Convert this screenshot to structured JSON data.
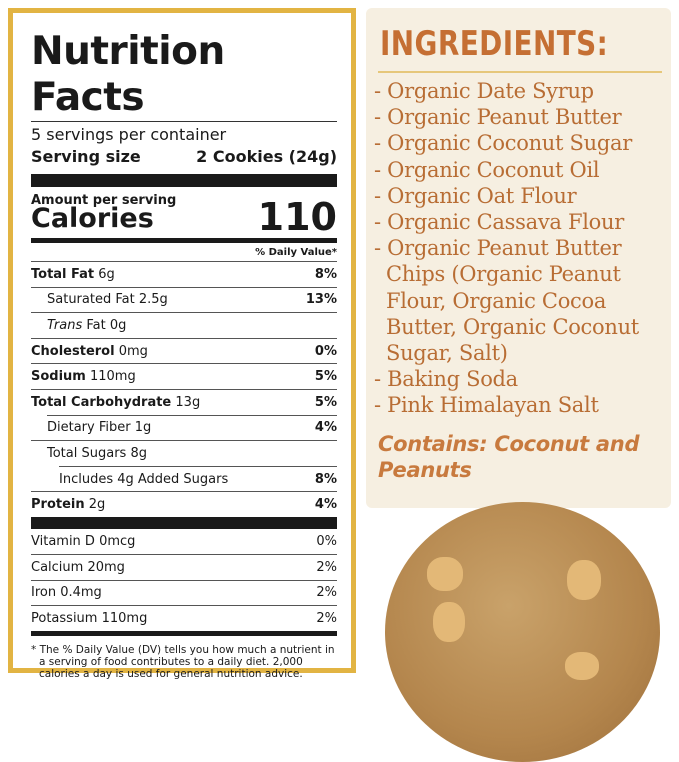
{
  "label": {
    "title": "Nutrition Facts",
    "servings": "5 servings per container",
    "serving_size_label": "Serving size",
    "serving_size_value": "2 Cookies (24g)",
    "amount_per_serving": "Amount per serving",
    "calories_label": "Calories",
    "calories_value": "110",
    "dv_header": "% Daily Value*",
    "nutrients": [
      {
        "bold": "Total Fat",
        "amt": " 6g",
        "pct": "8%"
      },
      {
        "bold": "",
        "amt": "Saturated Fat 2.5g",
        "pct": "13%"
      },
      {
        "italic": "Trans",
        "amt": " Fat 0g",
        "pct": ""
      },
      {
        "bold": "Cholesterol",
        "amt": " 0mg",
        "pct": "0%"
      },
      {
        "bold": "Sodium",
        "amt": " 110mg",
        "pct": "5%"
      },
      {
        "bold": "Total Carbohydrate",
        "amt": " 13g",
        "pct": "5%"
      },
      {
        "bold": "",
        "amt": "Dietary Fiber 1g",
        "pct": "4%"
      },
      {
        "bold": "",
        "amt": "Total Sugars 8g",
        "pct": ""
      },
      {
        "bold": "",
        "amt": "Includes 4g Added Sugars",
        "pct": "8%"
      },
      {
        "bold": "Protein",
        "amt": " 2g",
        "pct": "4%"
      }
    ],
    "vitamins": [
      {
        "name": "Vitamin D 0mcg",
        "pct": "0%"
      },
      {
        "name": "Calcium 20mg",
        "pct": "2%"
      },
      {
        "name": "Iron 0.4mg",
        "pct": "2%"
      },
      {
        "name": "Potassium 110mg",
        "pct": "2%"
      }
    ],
    "footnote": "* The % Daily Value (DV) tells you how much a nutrient in a serving of food contributes to a daily diet. 2,000 calories a day is used for general nutrition advice."
  },
  "ingredients": {
    "title": "INGREDIENTS:",
    "items": [
      "- Organic Date Syrup",
      "- Organic Peanut Butter",
      "- Organic Coconut Sugar",
      "- Organic Coconut Oil",
      "- Organic Oat Flour",
      "- Organic Cassava Flour",
      "- Organic Peanut Butter Chips (Organic Peanut Flour, Organic Cocoa Butter, Organic Coconut Sugar, Salt)",
      "- Baking Soda",
      "- Pink Himalayan Salt"
    ],
    "contains": "Contains: Coconut and Peanuts"
  },
  "colors": {
    "border": "#e2b443",
    "panel": "#f6efe1",
    "heading": "#c56f33",
    "text": "#b86d34"
  }
}
